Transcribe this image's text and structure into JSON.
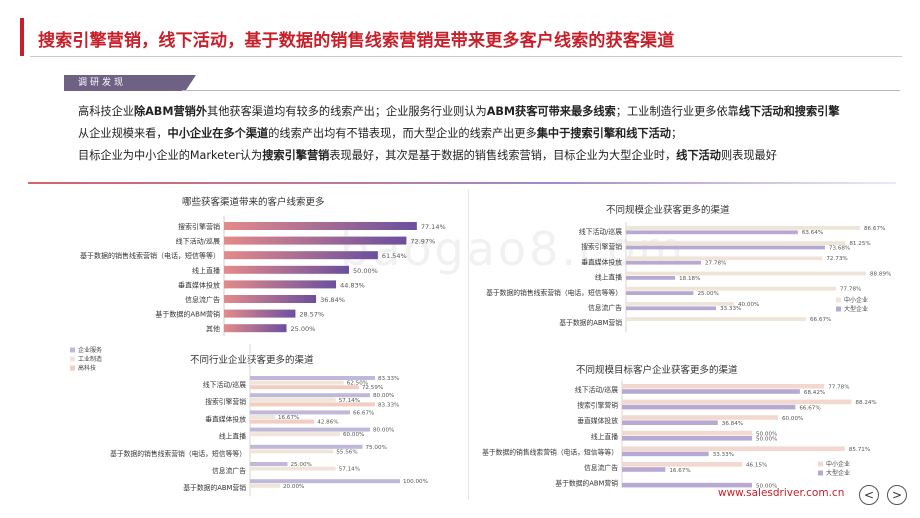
{
  "title": "搜索引擎营销，线下活动，基于数据的销售线索营销是带来更多客户线索的获客渠道",
  "tag": "调研发现",
  "intro": [
    [
      {
        "t": "高科技企业"
      },
      {
        "t": "除ABM营销外",
        "b": true
      },
      {
        "t": "其他获客渠道均有较多的线索产出；企业服务行业则认为"
      },
      {
        "t": "ABM获客可带来最多线索",
        "b": true
      },
      {
        "t": "；工业制造行业更多依靠"
      },
      {
        "t": "线下活动和搜索引擎",
        "b": true
      }
    ],
    [
      {
        "t": "从企业规模来看，"
      },
      {
        "t": "中小企业在多个渠道",
        "b": true
      },
      {
        "t": "的线索产出均有不错表现，而大型企业的线索产出更多"
      },
      {
        "t": "集中于搜索引擎和线下活动",
        "b": true
      },
      {
        "t": "；"
      }
    ],
    [
      {
        "t": "目标企业为中小企业的Marketer认为"
      },
      {
        "t": "搜索引擎营销",
        "b": true
      },
      {
        "t": "表现最好，其次是基于数据的销售线索营销，目标企业为大型企业时，"
      },
      {
        "t": "线下活动",
        "b": true
      },
      {
        "t": "则表现最好"
      }
    ]
  ],
  "url": "www.salesdriver.com.cn",
  "nav": {
    "prev": "<",
    "next": ">"
  },
  "watermark": "baogao8.com",
  "colors": {
    "brand": "#c8202a",
    "purple": "#7b68a6",
    "pink": "#f0c8bc",
    "cream": "#efe6d9",
    "lav": "#c9c2db"
  },
  "chart_data": [
    {
      "type": "bar",
      "orientation": "horizontal",
      "title": "哪些获客渠道带来的客户线索更多",
      "categories": [
        "搜索引擎营销",
        "线下活动/巡展",
        "基于数据的销售线索营销（电话，短信等等）",
        "线上直播",
        "垂直媒体投放",
        "信息流广告",
        "基于数据的ABM营销",
        "其他"
      ],
      "values": [
        77.14,
        72.97,
        61.54,
        50.0,
        44.83,
        36.84,
        28.57,
        25.0
      ],
      "labels": [
        "77.14%",
        "72.97%",
        "61.54%",
        "50.00%",
        "44.83%",
        "36.84%",
        "28.57%",
        "25.00%"
      ],
      "xlim": [
        0,
        100
      ]
    },
    {
      "type": "bar",
      "orientation": "horizontal",
      "title": "不同规模企业获客更多的渠道",
      "categories": [
        "线下活动/巡展",
        "搜索引擎营销",
        "垂直媒体投放",
        "线上直播",
        "基于数据的销售线索营销（电话，短信等等）",
        "信息流广告",
        "基于数据的ABM营销"
      ],
      "series": [
        {
          "name": "中小企业",
          "values": [
            86.67,
            81.25,
            72.73,
            88.89,
            77.78,
            40.0,
            66.67
          ],
          "labels": [
            "86.67%",
            "81.25%",
            "72.73%",
            "88.89%",
            "77.78%",
            "40.00%",
            "66.67%"
          ]
        },
        {
          "name": "大型企业",
          "values": [
            63.64,
            73.68,
            27.78,
            18.18,
            25.0,
            33.33,
            null
          ],
          "labels": [
            "63.64%",
            "73.68%",
            "27.78%",
            "18.18%",
            "25.00%",
            "33.33%",
            ""
          ]
        }
      ],
      "legend": "right",
      "xlim": [
        0,
        100
      ]
    },
    {
      "type": "bar",
      "orientation": "horizontal",
      "title": "不同行业企业获客更多的渠道",
      "categories": [
        "线下活动/巡展",
        "搜索引擎营销",
        "垂直媒体投放",
        "线上直播",
        "基于数据的销售线索营销（电话，短信等等）",
        "信息流广告",
        "基于数据的ABM营销"
      ],
      "series": [
        {
          "name": "企业服务",
          "values": [
            83.33,
            80.0,
            66.67,
            80.0,
            75.0,
            25.0,
            100.0
          ],
          "labels": [
            "83.33%",
            "80.00%",
            "66.67%",
            "80.00%",
            "75.00%",
            "25.00%",
            "100.00%"
          ]
        },
        {
          "name": "工业制造",
          "values": [
            62.5,
            57.14,
            16.67,
            60.0,
            55.56,
            57.14,
            20.0
          ],
          "labels": [
            "62.50%",
            "57.14%",
            "16.67%",
            "60.00%",
            "55.56%",
            "57.14%",
            "20.00%"
          ]
        },
        {
          "name": "高科技",
          "values": [
            72.59,
            83.33,
            42.86,
            null,
            null,
            null,
            null
          ],
          "labels": [
            "72.59%",
            "83.33%",
            "42.86%",
            "",
            "",
            "",
            ""
          ]
        }
      ],
      "legend": "top-left",
      "xlim": [
        0,
        100
      ]
    },
    {
      "type": "bar",
      "orientation": "horizontal",
      "title": "不同规模目标客户企业获客更多的渠道",
      "categories": [
        "线下活动/巡展",
        "搜索引擎营销",
        "垂直媒体投放",
        "线上直播",
        "基于数据的销售线索营销（电话，短信等等）",
        "信息流广告",
        "基于数据的ABM营销"
      ],
      "series": [
        {
          "name": "中小企业",
          "values": [
            77.78,
            88.24,
            60.0,
            50.0,
            85.71,
            46.15,
            null
          ],
          "labels": [
            "77.78%",
            "88.24%",
            "60.00%",
            "50.00%",
            "85.71%",
            "46.15%",
            ""
          ]
        },
        {
          "name": "大型企业",
          "values": [
            68.42,
            66.67,
            36.84,
            50.0,
            33.33,
            16.67,
            50.0
          ],
          "labels": [
            "68.42%",
            "66.67%",
            "36.84%",
            "50.00%",
            "33.33%",
            "16.67%",
            "50.00%"
          ]
        }
      ],
      "legend": "right",
      "xlim": [
        0,
        100
      ]
    }
  ]
}
